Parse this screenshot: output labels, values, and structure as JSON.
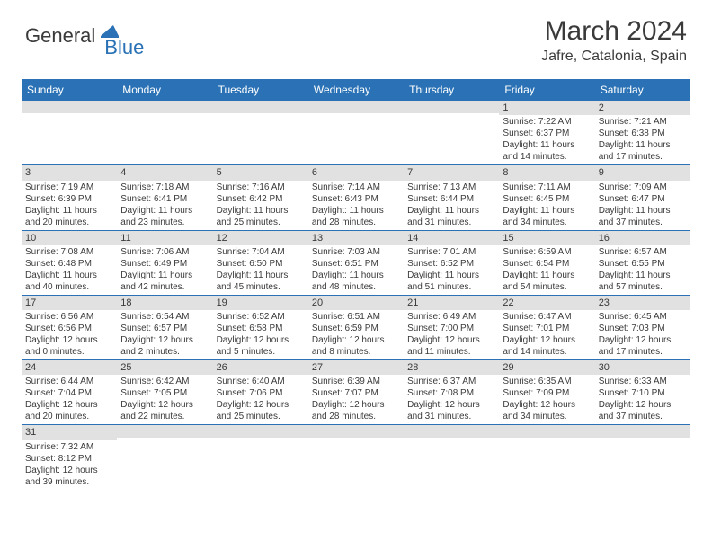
{
  "logo": {
    "text1": "General",
    "text2": "Blue",
    "accent_color": "#2a72b5"
  },
  "title": "March 2024",
  "subtitle": "Jafre, Catalonia, Spain",
  "header_bg": "#2a72b5",
  "header_fg": "#ffffff",
  "daynum_bg": "#e1e1e1",
  "border_color": "#2a72b5",
  "text_color": "#3a3a3a",
  "day_names": [
    "Sunday",
    "Monday",
    "Tuesday",
    "Wednesday",
    "Thursday",
    "Friday",
    "Saturday"
  ],
  "weeks": [
    [
      null,
      null,
      null,
      null,
      null,
      {
        "n": "1",
        "sr": "Sunrise: 7:22 AM",
        "ss": "Sunset: 6:37 PM",
        "d1": "Daylight: 11 hours",
        "d2": "and 14 minutes."
      },
      {
        "n": "2",
        "sr": "Sunrise: 7:21 AM",
        "ss": "Sunset: 6:38 PM",
        "d1": "Daylight: 11 hours",
        "d2": "and 17 minutes."
      }
    ],
    [
      {
        "n": "3",
        "sr": "Sunrise: 7:19 AM",
        "ss": "Sunset: 6:39 PM",
        "d1": "Daylight: 11 hours",
        "d2": "and 20 minutes."
      },
      {
        "n": "4",
        "sr": "Sunrise: 7:18 AM",
        "ss": "Sunset: 6:41 PM",
        "d1": "Daylight: 11 hours",
        "d2": "and 23 minutes."
      },
      {
        "n": "5",
        "sr": "Sunrise: 7:16 AM",
        "ss": "Sunset: 6:42 PM",
        "d1": "Daylight: 11 hours",
        "d2": "and 25 minutes."
      },
      {
        "n": "6",
        "sr": "Sunrise: 7:14 AM",
        "ss": "Sunset: 6:43 PM",
        "d1": "Daylight: 11 hours",
        "d2": "and 28 minutes."
      },
      {
        "n": "7",
        "sr": "Sunrise: 7:13 AM",
        "ss": "Sunset: 6:44 PM",
        "d1": "Daylight: 11 hours",
        "d2": "and 31 minutes."
      },
      {
        "n": "8",
        "sr": "Sunrise: 7:11 AM",
        "ss": "Sunset: 6:45 PM",
        "d1": "Daylight: 11 hours",
        "d2": "and 34 minutes."
      },
      {
        "n": "9",
        "sr": "Sunrise: 7:09 AM",
        "ss": "Sunset: 6:47 PM",
        "d1": "Daylight: 11 hours",
        "d2": "and 37 minutes."
      }
    ],
    [
      {
        "n": "10",
        "sr": "Sunrise: 7:08 AM",
        "ss": "Sunset: 6:48 PM",
        "d1": "Daylight: 11 hours",
        "d2": "and 40 minutes."
      },
      {
        "n": "11",
        "sr": "Sunrise: 7:06 AM",
        "ss": "Sunset: 6:49 PM",
        "d1": "Daylight: 11 hours",
        "d2": "and 42 minutes."
      },
      {
        "n": "12",
        "sr": "Sunrise: 7:04 AM",
        "ss": "Sunset: 6:50 PM",
        "d1": "Daylight: 11 hours",
        "d2": "and 45 minutes."
      },
      {
        "n": "13",
        "sr": "Sunrise: 7:03 AM",
        "ss": "Sunset: 6:51 PM",
        "d1": "Daylight: 11 hours",
        "d2": "and 48 minutes."
      },
      {
        "n": "14",
        "sr": "Sunrise: 7:01 AM",
        "ss": "Sunset: 6:52 PM",
        "d1": "Daylight: 11 hours",
        "d2": "and 51 minutes."
      },
      {
        "n": "15",
        "sr": "Sunrise: 6:59 AM",
        "ss": "Sunset: 6:54 PM",
        "d1": "Daylight: 11 hours",
        "d2": "and 54 minutes."
      },
      {
        "n": "16",
        "sr": "Sunrise: 6:57 AM",
        "ss": "Sunset: 6:55 PM",
        "d1": "Daylight: 11 hours",
        "d2": "and 57 minutes."
      }
    ],
    [
      {
        "n": "17",
        "sr": "Sunrise: 6:56 AM",
        "ss": "Sunset: 6:56 PM",
        "d1": "Daylight: 12 hours",
        "d2": "and 0 minutes."
      },
      {
        "n": "18",
        "sr": "Sunrise: 6:54 AM",
        "ss": "Sunset: 6:57 PM",
        "d1": "Daylight: 12 hours",
        "d2": "and 2 minutes."
      },
      {
        "n": "19",
        "sr": "Sunrise: 6:52 AM",
        "ss": "Sunset: 6:58 PM",
        "d1": "Daylight: 12 hours",
        "d2": "and 5 minutes."
      },
      {
        "n": "20",
        "sr": "Sunrise: 6:51 AM",
        "ss": "Sunset: 6:59 PM",
        "d1": "Daylight: 12 hours",
        "d2": "and 8 minutes."
      },
      {
        "n": "21",
        "sr": "Sunrise: 6:49 AM",
        "ss": "Sunset: 7:00 PM",
        "d1": "Daylight: 12 hours",
        "d2": "and 11 minutes."
      },
      {
        "n": "22",
        "sr": "Sunrise: 6:47 AM",
        "ss": "Sunset: 7:01 PM",
        "d1": "Daylight: 12 hours",
        "d2": "and 14 minutes."
      },
      {
        "n": "23",
        "sr": "Sunrise: 6:45 AM",
        "ss": "Sunset: 7:03 PM",
        "d1": "Daylight: 12 hours",
        "d2": "and 17 minutes."
      }
    ],
    [
      {
        "n": "24",
        "sr": "Sunrise: 6:44 AM",
        "ss": "Sunset: 7:04 PM",
        "d1": "Daylight: 12 hours",
        "d2": "and 20 minutes."
      },
      {
        "n": "25",
        "sr": "Sunrise: 6:42 AM",
        "ss": "Sunset: 7:05 PM",
        "d1": "Daylight: 12 hours",
        "d2": "and 22 minutes."
      },
      {
        "n": "26",
        "sr": "Sunrise: 6:40 AM",
        "ss": "Sunset: 7:06 PM",
        "d1": "Daylight: 12 hours",
        "d2": "and 25 minutes."
      },
      {
        "n": "27",
        "sr": "Sunrise: 6:39 AM",
        "ss": "Sunset: 7:07 PM",
        "d1": "Daylight: 12 hours",
        "d2": "and 28 minutes."
      },
      {
        "n": "28",
        "sr": "Sunrise: 6:37 AM",
        "ss": "Sunset: 7:08 PM",
        "d1": "Daylight: 12 hours",
        "d2": "and 31 minutes."
      },
      {
        "n": "29",
        "sr": "Sunrise: 6:35 AM",
        "ss": "Sunset: 7:09 PM",
        "d1": "Daylight: 12 hours",
        "d2": "and 34 minutes."
      },
      {
        "n": "30",
        "sr": "Sunrise: 6:33 AM",
        "ss": "Sunset: 7:10 PM",
        "d1": "Daylight: 12 hours",
        "d2": "and 37 minutes."
      }
    ],
    [
      {
        "n": "31",
        "sr": "Sunrise: 7:32 AM",
        "ss": "Sunset: 8:12 PM",
        "d1": "Daylight: 12 hours",
        "d2": "and 39 minutes."
      },
      null,
      null,
      null,
      null,
      null,
      null
    ]
  ]
}
